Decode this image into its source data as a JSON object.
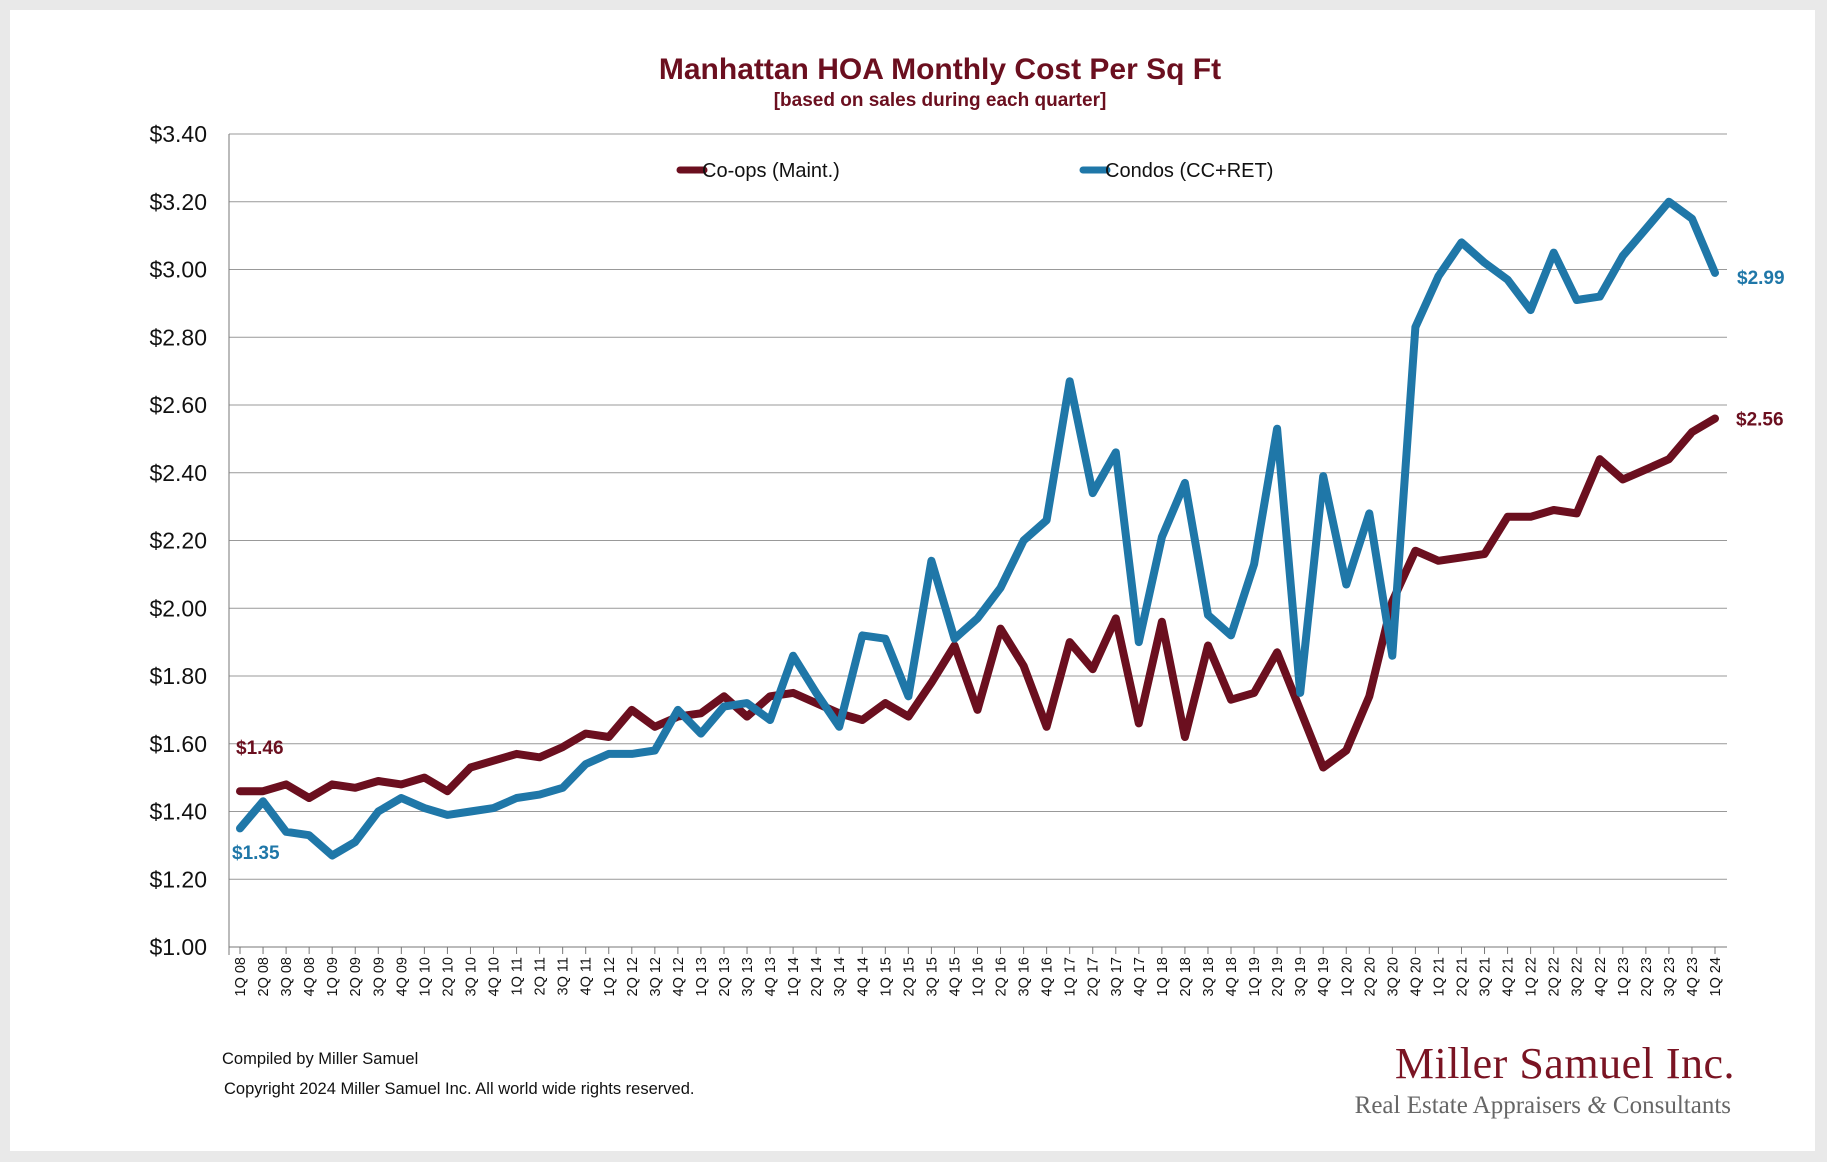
{
  "chart_data": {
    "type": "line",
    "title": "Manhattan HOA Monthly Cost Per Sq Ft",
    "subtitle": "[based on sales during each quarter]",
    "xlabel": "",
    "ylabel": "",
    "ylim": [
      1.0,
      3.4
    ],
    "yticks": [
      "$1.00",
      "$1.20",
      "$1.40",
      "$1.60",
      "$1.80",
      "$2.00",
      "$2.20",
      "$2.40",
      "$2.60",
      "$2.80",
      "$3.00",
      "$3.20",
      "$3.40"
    ],
    "ytick_values": [
      1.0,
      1.2,
      1.4,
      1.6,
      1.8,
      2.0,
      2.2,
      2.4,
      2.6,
      2.8,
      3.0,
      3.2,
      3.4
    ],
    "grid": "horizontal",
    "legend_position": "top-center",
    "categories": [
      "1Q 08",
      "2Q 08",
      "3Q 08",
      "4Q 08",
      "1Q 09",
      "2Q 09",
      "3Q 09",
      "4Q 09",
      "1Q 10",
      "2Q 10",
      "3Q 10",
      "4Q 10",
      "1Q 11",
      "2Q 11",
      "3Q 11",
      "4Q 11",
      "1Q 12",
      "2Q 12",
      "3Q 12",
      "4Q 12",
      "1Q 13",
      "2Q 13",
      "3Q 13",
      "4Q 13",
      "1Q 14",
      "2Q 14",
      "3Q 14",
      "4Q 14",
      "1Q 15",
      "2Q 15",
      "3Q 15",
      "4Q 15",
      "1Q 16",
      "2Q 16",
      "3Q 16",
      "4Q 16",
      "1Q 17",
      "2Q 17",
      "3Q 17",
      "4Q 17",
      "1Q 18",
      "2Q 18",
      "3Q 18",
      "4Q 18",
      "1Q 19",
      "2Q 19",
      "3Q 19",
      "4Q 19",
      "1Q 20",
      "2Q 20",
      "3Q 20",
      "4Q 20",
      "1Q 21",
      "2Q 21",
      "3Q 21",
      "4Q 21",
      "1Q 22",
      "2Q 22",
      "3Q 22",
      "4Q 22",
      "1Q 23",
      "2Q 23",
      "3Q 23",
      "4Q 23",
      "1Q 24"
    ],
    "series": [
      {
        "name": "Co-ops (Maint.)",
        "color": "#6b0f1f",
        "start_label": "$1.46",
        "end_label": "$2.56",
        "values": [
          1.46,
          1.46,
          1.48,
          1.44,
          1.48,
          1.47,
          1.49,
          1.48,
          1.5,
          1.46,
          1.53,
          1.55,
          1.57,
          1.56,
          1.59,
          1.63,
          1.62,
          1.7,
          1.65,
          1.68,
          1.69,
          1.74,
          1.68,
          1.74,
          1.75,
          1.72,
          1.69,
          1.67,
          1.72,
          1.68,
          1.78,
          1.89,
          1.7,
          1.94,
          1.83,
          1.65,
          1.9,
          1.82,
          1.97,
          1.66,
          1.96,
          1.62,
          1.89,
          1.73,
          1.75,
          1.87,
          1.7,
          1.53,
          1.58,
          1.74,
          2.02,
          2.17,
          2.14,
          2.15,
          2.16,
          2.27,
          2.27,
          2.29,
          2.28,
          2.44,
          2.38,
          2.41,
          2.44,
          2.52,
          2.56
        ]
      },
      {
        "name": "Condos (CC+RET)",
        "color": "#1f77a8",
        "start_label": "$1.35",
        "end_label": "$2.99",
        "values": [
          1.35,
          1.43,
          1.34,
          1.33,
          1.27,
          1.31,
          1.4,
          1.44,
          1.41,
          1.39,
          1.4,
          1.41,
          1.44,
          1.45,
          1.47,
          1.54,
          1.57,
          1.57,
          1.58,
          1.7,
          1.63,
          1.71,
          1.72,
          1.67,
          1.86,
          1.75,
          1.65,
          1.92,
          1.91,
          1.74,
          2.14,
          1.91,
          1.97,
          2.06,
          2.2,
          2.26,
          2.67,
          2.34,
          2.46,
          1.9,
          2.21,
          2.37,
          1.98,
          1.92,
          2.13,
          2.53,
          1.75,
          2.39,
          2.07,
          2.28,
          1.86,
          2.83,
          2.98,
          3.08,
          3.02,
          2.97,
          2.88,
          3.05,
          2.91,
          2.92,
          3.04,
          3.12,
          3.2,
          3.15,
          2.99
        ]
      }
    ]
  },
  "footer": {
    "compiled": "Compiled by Miller Samuel",
    "copyright": "Copyright 2024 Miller Samuel Inc.  All world wide rights reserved."
  },
  "brand": {
    "name": "Miller Samuel Inc.",
    "tagline_pre": "Real Estate Appraisers ",
    "tagline_amp": "&",
    "tagline_post": " Consultants"
  }
}
